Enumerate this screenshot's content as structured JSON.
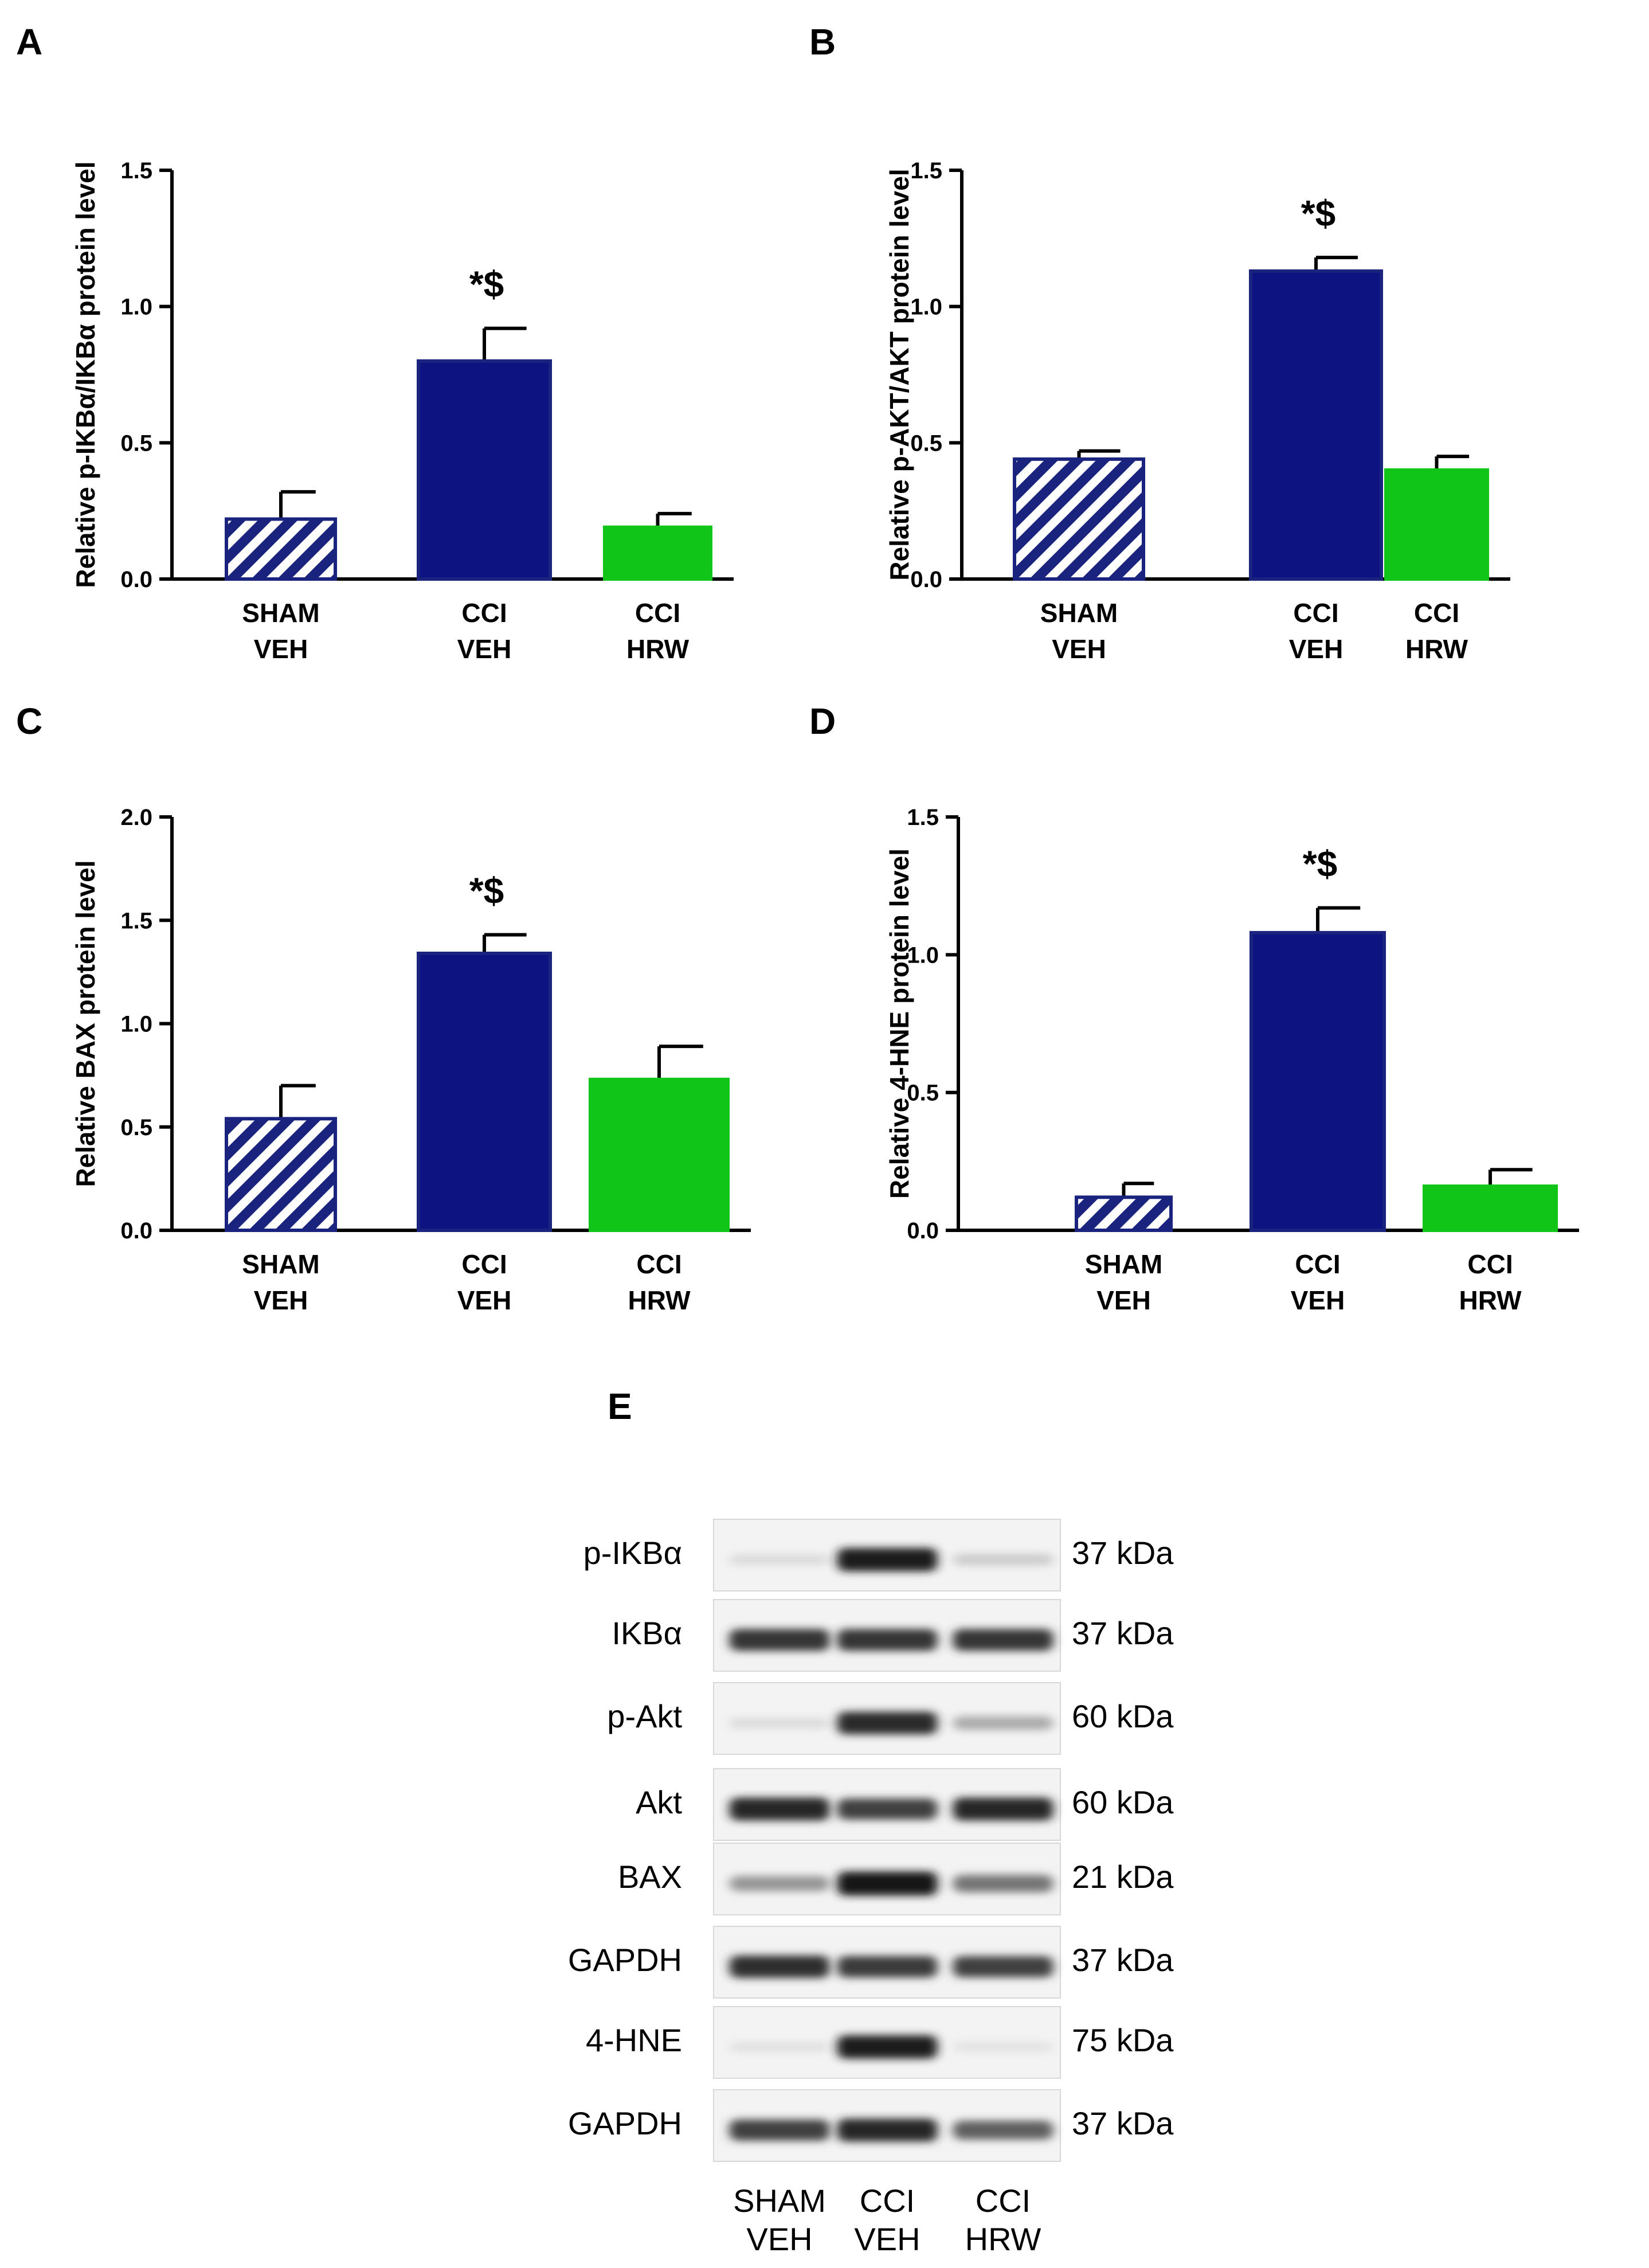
{
  "colors": {
    "sham_veh": "#1a237e",
    "cci_veh": "#0d1380",
    "cci_hrw": "#11c418",
    "axis": "#000000"
  },
  "chart_data": [
    {
      "panel": "A",
      "type": "bar",
      "ylabel": "Relative p-IKBα/IKBα protein level",
      "categories": [
        [
          "SHAM",
          "VEH"
        ],
        [
          "CCI",
          "VEH"
        ],
        [
          "CCI",
          "HRW"
        ]
      ],
      "values": [
        0.22,
        0.8,
        0.19
      ],
      "errors": [
        0.1,
        0.12,
        0.05
      ],
      "styles": [
        "hatched",
        "solid-navy",
        "solid-green"
      ],
      "ylim": [
        0,
        1.5
      ],
      "yticks": [
        "0.0",
        "0.5",
        "1.0",
        "1.5"
      ],
      "annotation": {
        "index": 1,
        "text": "*$"
      }
    },
    {
      "panel": "B",
      "type": "bar",
      "ylabel": "Relative p-AKT/AKT protein level",
      "categories": [
        [
          "SHAM",
          "VEH"
        ],
        [
          "CCI",
          "VEH"
        ],
        [
          "CCI",
          "HRW"
        ]
      ],
      "values": [
        0.44,
        1.13,
        0.4
      ],
      "errors": [
        0.03,
        0.05,
        0.05
      ],
      "styles": [
        "hatched",
        "solid-navy",
        "solid-green"
      ],
      "ylim": [
        0,
        1.5
      ],
      "yticks": [
        "0.0",
        "0.5",
        "1.0",
        "1.5"
      ],
      "annotation": {
        "index": 1,
        "text": "*$"
      }
    },
    {
      "panel": "C",
      "type": "bar",
      "ylabel": "Relative BAX protein level",
      "categories": [
        [
          "SHAM",
          "VEH"
        ],
        [
          "CCI",
          "VEH"
        ],
        [
          "CCI",
          "HRW"
        ]
      ],
      "values": [
        0.54,
        1.34,
        0.73
      ],
      "errors": [
        0.16,
        0.09,
        0.16
      ],
      "styles": [
        "hatched",
        "solid-navy",
        "solid-green"
      ],
      "ylim": [
        0,
        2.0
      ],
      "yticks": [
        "0.0",
        "0.5",
        "1.0",
        "1.5",
        "2.0"
      ],
      "annotation": {
        "index": 1,
        "text": "*$"
      }
    },
    {
      "panel": "D",
      "type": "bar",
      "ylabel": "Relative 4-HNE protein level",
      "categories": [
        [
          "SHAM",
          "VEH"
        ],
        [
          "CCI",
          "VEH"
        ],
        [
          "CCI",
          "HRW"
        ]
      ],
      "values": [
        0.12,
        1.08,
        0.16
      ],
      "errors": [
        0.05,
        0.09,
        0.06
      ],
      "styles": [
        "hatched",
        "solid-navy",
        "solid-green"
      ],
      "ylim": [
        0,
        1.5
      ],
      "yticks": [
        "0.0",
        "0.5",
        "1.0",
        "1.5"
      ],
      "annotation": {
        "index": 1,
        "text": "*$"
      }
    }
  ],
  "blot": {
    "panel": "E",
    "lanes": [
      [
        "SHAM",
        "VEH"
      ],
      [
        "CCI",
        "VEH"
      ],
      [
        "CCI",
        "HRW"
      ]
    ],
    "rows": [
      {
        "label": "p-IKBα",
        "kda": "37 kDa",
        "intensity": [
          0.08,
          0.95,
          0.15
        ]
      },
      {
        "label": "IKBα",
        "kda": "37 kDa",
        "intensity": [
          0.85,
          0.85,
          0.85
        ]
      },
      {
        "label": "p-Akt",
        "kda": "60 kDa",
        "intensity": [
          0.08,
          0.9,
          0.3
        ]
      },
      {
        "label": "Akt",
        "kda": "60 kDa",
        "intensity": [
          0.92,
          0.8,
          0.92
        ]
      },
      {
        "label": "BAX",
        "kda": "21 kDa",
        "intensity": [
          0.4,
          1.0,
          0.55
        ]
      },
      {
        "label": "GAPDH",
        "kda": "37 kDa",
        "intensity": [
          0.88,
          0.82,
          0.8
        ]
      },
      {
        "label": "4-HNE",
        "kda": "75 kDa",
        "intensity": [
          0.05,
          0.95,
          0.04
        ]
      },
      {
        "label": "GAPDH",
        "kda": "37 kDa",
        "intensity": [
          0.8,
          0.92,
          0.65
        ]
      }
    ]
  }
}
